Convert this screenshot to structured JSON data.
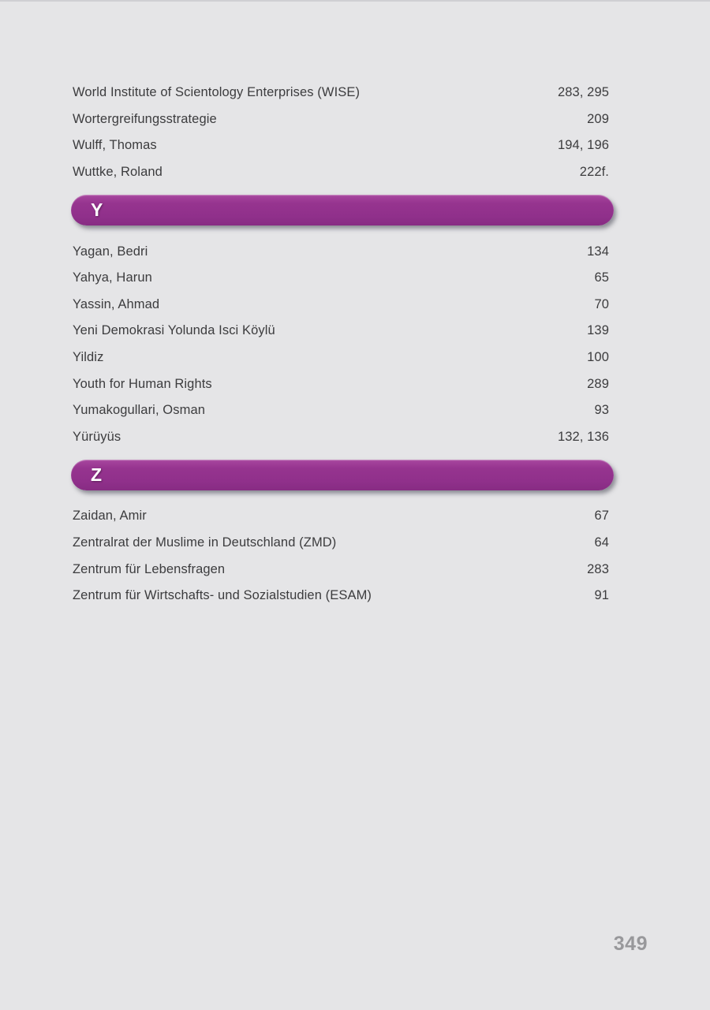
{
  "page": {
    "number": "349"
  },
  "colors": {
    "background": "#e5e5e7",
    "accent_purple": "#96348f",
    "entry_text": "#3c3c3e",
    "page_number_gray": "#98989b",
    "header_letter_white": "#ffffff"
  },
  "index": {
    "sections": [
      {
        "letter": "",
        "entries": [
          {
            "term": "World Institute of Scientology Enterprises (WISE)",
            "pages": "283, 295"
          },
          {
            "term": "Wortergreifungsstrategie",
            "pages": "209"
          },
          {
            "term": "Wulff, Thomas",
            "pages": "194, 196"
          },
          {
            "term": "Wuttke, Roland",
            "pages": "222f."
          }
        ]
      },
      {
        "letter": "Y",
        "entries": [
          {
            "term": "Yagan, Bedri",
            "pages": "134"
          },
          {
            "term": "Yahya, Harun",
            "pages": "65"
          },
          {
            "term": "Yassin, Ahmad",
            "pages": "70"
          },
          {
            "term": "Yeni Demokrasi Yolunda Isci Köylü",
            "pages": "139"
          },
          {
            "term": "Yildiz",
            "pages": "100"
          },
          {
            "term": "Youth for Human Rights",
            "pages": "289"
          },
          {
            "term": "Yumakogullari, Osman",
            "pages": "93"
          },
          {
            "term": "Yürüyüs",
            "pages": "132, 136"
          }
        ]
      },
      {
        "letter": "Z",
        "entries": [
          {
            "term": "Zaidan, Amir",
            "pages": "67"
          },
          {
            "term": "Zentralrat der Muslime in Deutschland (ZMD)",
            "pages": "64"
          },
          {
            "term": "Zentrum für Lebensfragen",
            "pages": "283"
          },
          {
            "term": "Zentrum für Wirtschafts- und Sozialstudien (ESAM)",
            "pages": "91"
          }
        ]
      }
    ]
  }
}
